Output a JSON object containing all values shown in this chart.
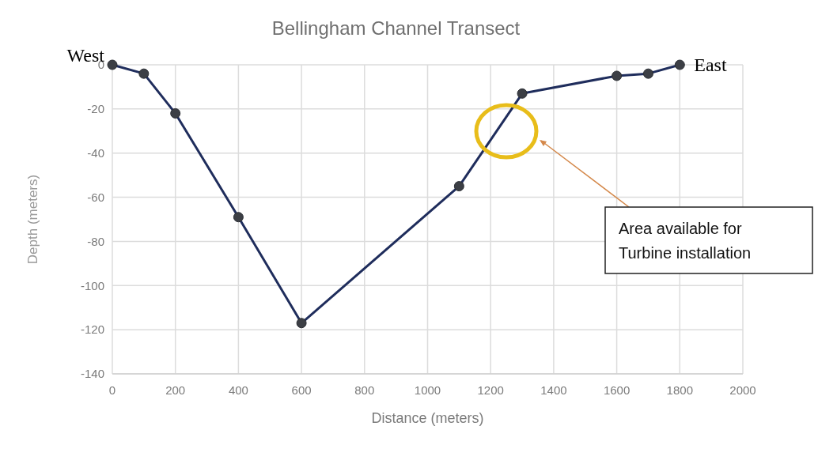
{
  "chart_data": {
    "type": "line",
    "title": "Bellingham Channel Transect",
    "xlabel": "Distance (meters)",
    "ylabel": "Depth (meters)",
    "x": [
      0,
      100,
      200,
      400,
      600,
      1100,
      1300,
      1600,
      1700,
      1800
    ],
    "series": [
      {
        "color": "#1f2d5c",
        "values": [
          0,
          -4,
          -22,
          -69,
          -117,
          -55,
          -13,
          -5,
          -4,
          0
        ]
      }
    ],
    "xlim": [
      0,
      2000
    ],
    "xticks": [
      0,
      200,
      400,
      600,
      800,
      1000,
      1200,
      1400,
      1600,
      1800,
      2000
    ],
    "ylim": [
      -140,
      0
    ],
    "yticks": [
      -140,
      -120,
      -100,
      -80,
      -60,
      -40,
      -20,
      0
    ],
    "grid": true,
    "marker": "circle",
    "line_style": "solid",
    "annotations": [
      {
        "text": "West",
        "x": 0,
        "y": 0
      },
      {
        "text": "East",
        "x": 1800,
        "y": 0
      },
      "Area available for Turbine installation"
    ]
  }
}
